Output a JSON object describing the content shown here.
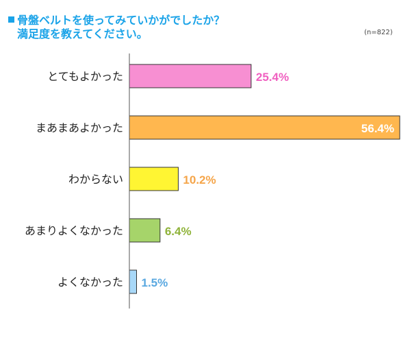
{
  "title": {
    "line1": "骨盤ベルトを使ってみていかがでしたか？",
    "line2": "満足度を教えてください。"
  },
  "sample_size": "(n=822)",
  "chart_data": {
    "type": "bar",
    "orientation": "horizontal",
    "title": "骨盤ベルトを使ってみていかがでしたか？ 満足度を教えてください。",
    "categories": [
      "とてもよかった",
      "まあまあよかった",
      "わからない",
      "あまりよくなかった",
      "よくなかった"
    ],
    "values": [
      25.4,
      56.4,
      10.2,
      6.4,
      1.5
    ],
    "value_labels": [
      "25.4%",
      "56.4%",
      "10.2%",
      "6.4%",
      "1.5%"
    ],
    "bar_colors": [
      "#f78fd2",
      "#ffb74f",
      "#fff533",
      "#a6d46a",
      "#a8d8f8"
    ],
    "label_colors": [
      "#f060c0",
      "#ffffff",
      "#f5a54a",
      "#8fb33a",
      "#5aa8e0"
    ],
    "xlim": [
      0,
      56.4
    ],
    "grid": false,
    "legend": "none"
  }
}
